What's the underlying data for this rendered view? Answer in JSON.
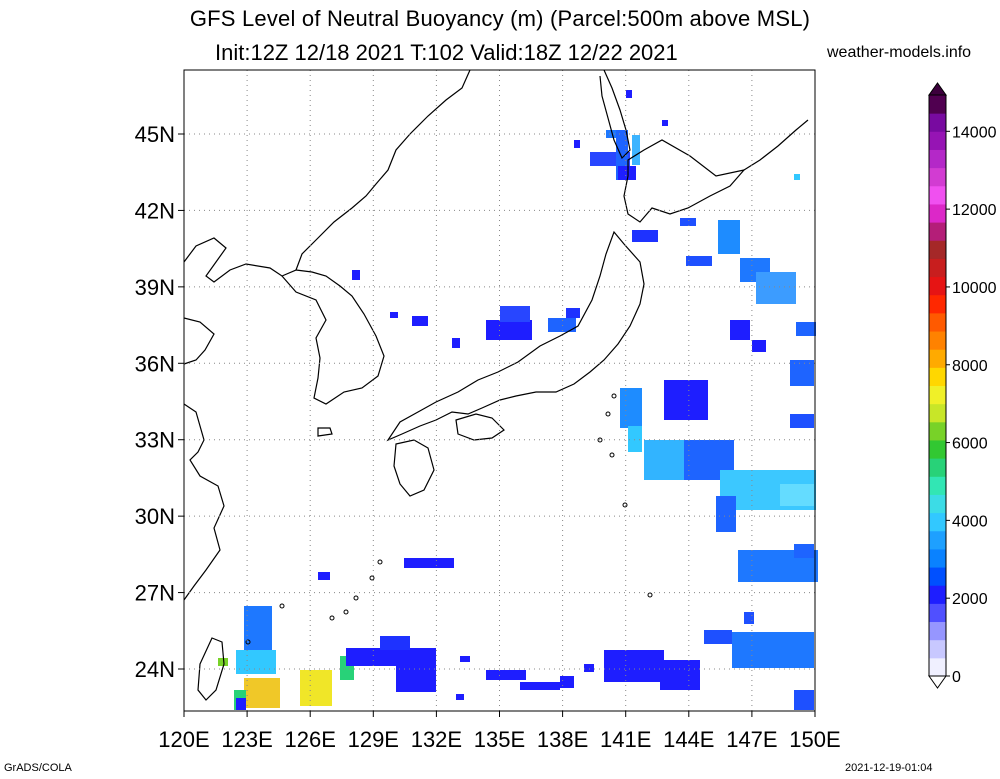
{
  "title": {
    "line1": "GFS Level of Neutral Buoyancy (m) (Parcel:500m above MSL)",
    "line2": "Init:12Z 12/18 2021 T:102 Valid:18Z 12/22 2021",
    "site": "weather-models.info"
  },
  "footer": {
    "left": "GrADS/COLA",
    "right": "2021-12-19-01:04"
  },
  "map": {
    "lon_range": [
      120,
      150
    ],
    "lat_range": [
      22.5,
      48
    ],
    "lat_ticks": [
      "45N",
      "42N",
      "39N",
      "36N",
      "33N",
      "30N",
      "27N",
      "24N"
    ],
    "lon_ticks": [
      "120E",
      "123E",
      "126E",
      "129E",
      "132E",
      "135E",
      "138E",
      "141E",
      "144E",
      "147E",
      "150E"
    ],
    "grid": true
  },
  "colorbar": {
    "labels": [
      "14000",
      "12000",
      "10000",
      "8000",
      "6000",
      "4000",
      "2000",
      "0"
    ],
    "colors": [
      "#f0f0ff",
      "#c8c8ff",
      "#9696ff",
      "#5050ff",
      "#1e1eff",
      "#0050ff",
      "#0a82ff",
      "#1ea0ff",
      "#32c8ff",
      "#3cdce6",
      "#32e6b4",
      "#28d278",
      "#32c832",
      "#78d228",
      "#c8e628",
      "#f0f028",
      "#ffd700",
      "#ffaa00",
      "#ff8200",
      "#ff5a00",
      "#ff2800",
      "#e61414",
      "#c81e1e",
      "#a52828",
      "#b41e78",
      "#dc28c8",
      "#f050f0",
      "#d23cd2",
      "#b428c8",
      "#9614b4",
      "#780aa0",
      "#500050"
    ]
  }
}
